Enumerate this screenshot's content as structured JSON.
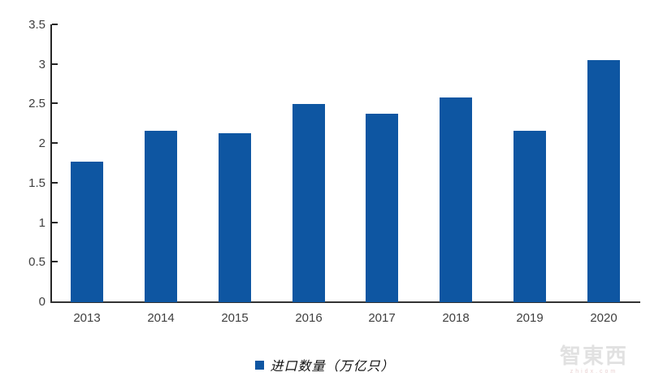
{
  "chart_data": {
    "type": "bar",
    "title": "",
    "xlabel": "",
    "ylabel": "",
    "categories": [
      "2013",
      "2014",
      "2015",
      "2016",
      "2017",
      "2018",
      "2019",
      "2020"
    ],
    "values": [
      1.78,
      2.17,
      2.14,
      2.5,
      2.38,
      2.59,
      2.17,
      3.06
    ],
    "series_name": "进口数量（万亿只）",
    "ylim": [
      0,
      3.5
    ],
    "ytick_step": 0.5,
    "ytick_labels": [
      "0",
      "0.5",
      "1",
      "1.5",
      "2",
      "2.5",
      "3",
      "3.5"
    ],
    "grid": false,
    "legend_position": "bottom",
    "bar_color": "#0E56A2",
    "axis_color": "#262626",
    "tick_label_color": "#3f3f3f"
  },
  "legend": {
    "label": "进口数量（万亿只）",
    "marker_color": "#0E56A2"
  },
  "watermark": {
    "logo_text": "智東西",
    "sub_text": "zhidx.com"
  }
}
